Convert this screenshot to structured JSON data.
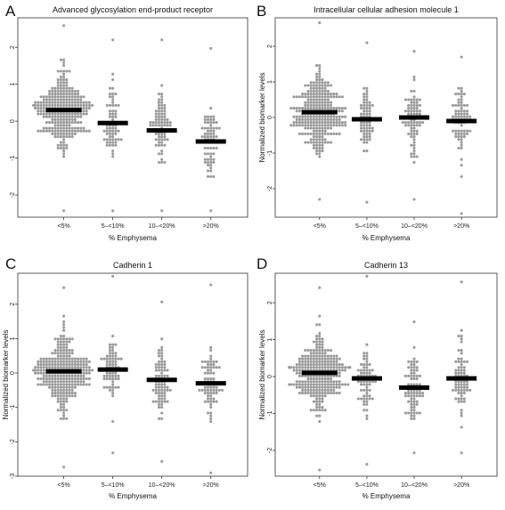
{
  "chart_data": [
    {
      "type": "scatter",
      "panel": "A",
      "title": "Advanced glycosylation end-product receptor",
      "xlabel": "% Emphysema",
      "ylabel": "",
      "categories": [
        "<5%",
        "5–<10%",
        "10–<20%",
        ">20%"
      ],
      "medians": [
        0.3,
        -0.05,
        -0.25,
        -0.55
      ],
      "spreads": [
        [
          -2.4,
          2.6
        ],
        [
          -2.4,
          2.2
        ],
        [
          -2.4,
          2.2
        ],
        [
          -2.4,
          2.0
        ]
      ],
      "counts": [
        290,
        70,
        80,
        75
      ],
      "ylim": [
        -2.6,
        2.8
      ],
      "yticks": [
        -2,
        -1,
        0,
        1,
        2
      ],
      "grid": false
    },
    {
      "type": "scatter",
      "panel": "B",
      "title": "Intracellular cellular adhesion molecule 1",
      "xlabel": "% Emphysema",
      "ylabel": "Normalized biomarker levels",
      "categories": [
        "<5%",
        "5–<10%",
        "10–<20%",
        ">20%"
      ],
      "medians": [
        0.15,
        -0.05,
        0.0,
        -0.1
      ],
      "spreads": [
        [
          -2.3,
          2.7
        ],
        [
          -2.4,
          2.1
        ],
        [
          -2.3,
          1.9
        ],
        [
          -2.7,
          1.7
        ]
      ],
      "counts": [
        290,
        70,
        80,
        75
      ],
      "ylim": [
        -2.8,
        2.8
      ],
      "yticks": [
        -2,
        -1,
        0,
        1,
        2
      ],
      "grid": false
    },
    {
      "type": "scatter",
      "panel": "C",
      "title": "Cadherin 1",
      "xlabel": "% Emphysema",
      "ylabel": "Normalized biomarker levels",
      "categories": [
        "<5%",
        "5–<10%",
        "10–<20%",
        ">20%"
      ],
      "medians": [
        0.05,
        0.1,
        -0.2,
        -0.3
      ],
      "spreads": [
        [
          -2.7,
          2.5
        ],
        [
          -2.3,
          2.8
        ],
        [
          -2.6,
          2.1
        ],
        [
          -2.9,
          2.6
        ]
      ],
      "counts": [
        290,
        70,
        80,
        75
      ],
      "ylim": [
        -3.0,
        2.9
      ],
      "yticks": [
        -3,
        -2,
        -1,
        0,
        1,
        2
      ],
      "grid": false
    },
    {
      "type": "scatter",
      "panel": "D",
      "title": "Cadherin 13",
      "xlabel": "% Emphysema",
      "ylabel": "Normalized biomarker levels",
      "categories": [
        "<5%",
        "5–<10%",
        "10–<20%",
        ">20%"
      ],
      "medians": [
        0.1,
        -0.05,
        -0.3,
        -0.05
      ],
      "spreads": [
        [
          -2.5,
          2.4
        ],
        [
          -2.4,
          2.7
        ],
        [
          -2.1,
          1.5
        ],
        [
          -2.1,
          2.6
        ]
      ],
      "counts": [
        290,
        70,
        80,
        75
      ],
      "ylim": [
        -2.7,
        2.8
      ],
      "yticks": [
        -2,
        -1,
        0,
        1,
        2
      ],
      "grid": false
    }
  ],
  "colors": {
    "points": "#9a9a9a",
    "median": "#000000",
    "frame": "#333333"
  }
}
